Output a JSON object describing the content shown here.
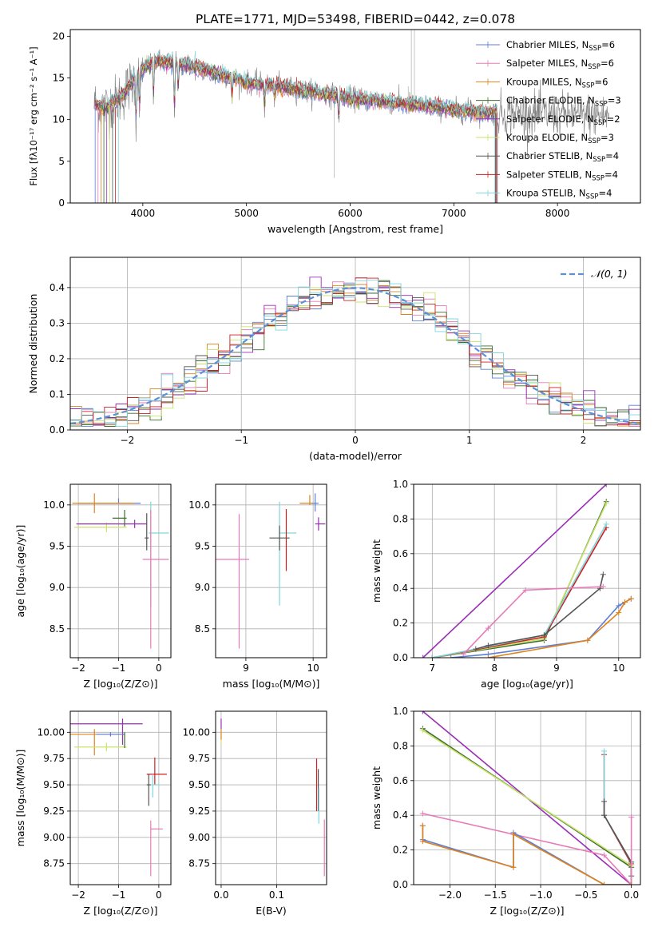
{
  "figure_title": "PLATE=1771, MJD=53498, FIBERID=0442, z=0.078",
  "colors": {
    "chabrier_miles": "#5b7fd6",
    "salpeter_miles": "#e87ab8",
    "kroupa_miles": "#e0821c",
    "chabrier_elodie": "#3d6e2e",
    "salpeter_elodie": "#9a2fb6",
    "kroupa_elodie": "#c9e36a",
    "chabrier_stelib": "#555555",
    "salpeter_stelib": "#cc2222",
    "kroupa_stelib": "#7fd6dc",
    "data": "#808080",
    "normal": "#5b8fd6"
  },
  "chart_data": [
    {
      "id": "spectrum",
      "type": "line",
      "title": "PLATE=1771, MJD=53498, FIBERID=0442, z=0.078",
      "xlabel": "wavelength [Angstrom, rest frame]",
      "ylabel": "Flux [fλ10⁻¹⁷ erg cm⁻² s⁻¹ A⁻¹]",
      "xlim": [
        3300,
        8800
      ],
      "ylim": [
        0,
        20.8
      ],
      "xticks": [
        4000,
        5000,
        6000,
        7000,
        8000
      ],
      "yticks": [
        0,
        5,
        10,
        15,
        20
      ],
      "grid": false,
      "legend_position": "top-right",
      "legend": [
        {
          "base": "Chabrier MILES, N",
          "sub": "SSP",
          "tail": "=6",
          "color": "#5b7fd6"
        },
        {
          "base": "Salpeter MILES, N",
          "sub": "SSP",
          "tail": "=6",
          "color": "#e87ab8"
        },
        {
          "base": "Kroupa MILES, N",
          "sub": "SSP",
          "tail": "=6",
          "color": "#e0821c"
        },
        {
          "base": "Chabrier ELODIE, N",
          "sub": "SSP",
          "tail": "=3",
          "color": "#3d6e2e"
        },
        {
          "base": "Salpeter ELODIE, N",
          "sub": "SSP",
          "tail": "=2",
          "color": "#9a2fb6"
        },
        {
          "base": "Kroupa ELODIE, N",
          "sub": "SSP",
          "tail": "=3",
          "color": "#c9e36a"
        },
        {
          "base": "Chabrier STELIB, N",
          "sub": "SSP",
          "tail": "=4",
          "color": "#555555"
        },
        {
          "base": "Salpeter STELIB, N",
          "sub": "SSP",
          "tail": "=4",
          "color": "#cc2222"
        },
        {
          "base": "Kroupa STELIB, N",
          "sub": "SSP",
          "tail": "=4",
          "color": "#7fd6dc"
        }
      ],
      "continuum": {
        "x": [
          3530,
          3650,
          3800,
          3950,
          4100,
          4300,
          4500,
          4800,
          5000,
          5300,
          5600,
          6000,
          6300,
          6600,
          7000,
          7300,
          7420
        ],
        "y": [
          11.8,
          11.5,
          12.8,
          15.5,
          17.0,
          16.8,
          16.3,
          15.3,
          14.5,
          14.0,
          13.4,
          12.6,
          12.2,
          11.8,
          11.2,
          10.8,
          10.8
        ]
      },
      "absorption_lines": [
        {
          "x": 3934,
          "depth": 6.0
        },
        {
          "x": 3969,
          "depth": 5.0
        },
        {
          "x": 4102,
          "depth": 4.5
        },
        {
          "x": 4305,
          "depth": 6.5
        },
        {
          "x": 4341,
          "depth": 3.5
        },
        {
          "x": 4861,
          "depth": 3.0
        },
        {
          "x": 5175,
          "depth": 3.0
        },
        {
          "x": 5270,
          "depth": 2.0
        },
        {
          "x": 5890,
          "depth": 3.0
        }
      ]
    },
    {
      "id": "residuals",
      "type": "line",
      "xlabel": "(data-model)/error",
      "ylabel": "Normed distribution",
      "xlim": [
        -2.5,
        2.5
      ],
      "ylim": [
        0,
        0.485
      ],
      "xticks": [
        -2,
        -1,
        0,
        1,
        2
      ],
      "yticks": [
        0.0,
        0.1,
        0.2,
        0.3,
        0.4
      ],
      "grid": true,
      "legend_position": "top-right",
      "legend_label": "𝒩(0, 1)",
      "bins": [
        -2.5,
        2.5,
        50
      ]
    },
    {
      "id": "age_vs_Z",
      "type": "scatter",
      "xlabel": "Z [log₁₀(Z/Z⊙)]",
      "ylabel": "age  [log₁₀(age/yr)]",
      "xlim": [
        -2.2,
        0.3
      ],
      "ylim": [
        8.15,
        10.25
      ],
      "xticks": [
        -2,
        -1,
        0
      ],
      "yticks": [
        8.5,
        9.0,
        9.5,
        10.0
      ],
      "grid": true,
      "points": [
        {
          "x": -1.0,
          "xerr": [
            1.0,
            0.55
          ],
          "y": 10.02,
          "yerr": [
            0.0,
            0.06
          ],
          "color": "#5b7fd6"
        },
        {
          "x": -1.6,
          "xerr": [
            0.55,
            1.0
          ],
          "y": 10.02,
          "yerr": [
            0.12,
            0.12
          ],
          "color": "#e0821c"
        },
        {
          "x": -1.3,
          "xerr": [
            0.8,
            0.5
          ],
          "y": 9.73,
          "yerr": [
            0.06,
            0.06
          ],
          "color": "#c9e36a"
        },
        {
          "x": -0.6,
          "xerr": [
            1.45,
            0.3
          ],
          "y": 9.77,
          "yerr": [
            0.05,
            0.05
          ],
          "color": "#9a2fb6"
        },
        {
          "x": -0.85,
          "xerr": [
            0.3,
            0.05
          ],
          "y": 9.84,
          "yerr": [
            0.1,
            0.1
          ],
          "color": "#3d6e2e"
        },
        {
          "x": -0.3,
          "xerr": [
            0.05,
            0.05
          ],
          "y": 9.6,
          "yerr": [
            0.15,
            0.3
          ],
          "color": "#555555"
        },
        {
          "x": -0.2,
          "xerr": [
            0.05,
            0.45
          ],
          "y": 9.66,
          "yerr": [
            0.9,
            0.38
          ],
          "color": "#7fd6dc"
        },
        {
          "x": -0.2,
          "xerr": [
            0.2,
            0.45
          ],
          "y": 9.34,
          "yerr": [
            1.08,
            0.6
          ],
          "color": "#e87ab8"
        }
      ]
    },
    {
      "id": "age_vs_mass",
      "type": "scatter",
      "xlabel": "mass [log₁₀(M/M⊙)]",
      "ylabel": "",
      "xlim": [
        8.55,
        10.2
      ],
      "ylim": [
        8.15,
        10.25
      ],
      "xticks": [
        9,
        10
      ],
      "yticks": [
        8.5,
        9.0,
        9.5,
        10.0
      ],
      "grid": true,
      "points": [
        {
          "x": 9.95,
          "xerr": [
            0.15,
            0.05
          ],
          "y": 10.02,
          "yerr": [
            0.02,
            0.1
          ],
          "color": "#e0821c"
        },
        {
          "x": 10.03,
          "xerr": [
            0.05,
            0.05
          ],
          "y": 10.02,
          "yerr": [
            0.1,
            0.12
          ],
          "color": "#5b7fd6"
        },
        {
          "x": 10.08,
          "xerr": [
            0.05,
            0.1
          ],
          "y": 9.77,
          "yerr": [
            0.08,
            0.08
          ],
          "color": "#9a2fb6"
        },
        {
          "x": 9.5,
          "xerr": [
            0.0,
            0.25
          ],
          "y": 9.66,
          "yerr": [
            0.88,
            0.38
          ],
          "color": "#7fd6dc"
        },
        {
          "x": 9.6,
          "xerr": [
            0.0,
            0.0
          ],
          "y": 9.6,
          "yerr": [
            0.4,
            0.35
          ],
          "color": "#cc2222"
        },
        {
          "x": 9.5,
          "xerr": [
            0.15,
            0.15
          ],
          "y": 9.6,
          "yerr": [
            0.15,
            0.15
          ],
          "color": "#555555"
        },
        {
          "x": 8.9,
          "xerr": [
            0.35,
            0.15
          ],
          "y": 9.34,
          "yerr": [
            1.08,
            0.55
          ],
          "color": "#e87ab8"
        }
      ]
    },
    {
      "id": "massweight_vs_age",
      "type": "line",
      "xlabel": "age  [log₁₀(age/yr)]",
      "ylabel": "mass weight",
      "xlim": [
        6.7,
        10.35
      ],
      "ylim": [
        0,
        1.0
      ],
      "xticks": [
        7,
        8,
        9,
        10
      ],
      "yticks": [
        0.0,
        0.2,
        0.4,
        0.6,
        0.8,
        1.0
      ],
      "grid": true,
      "series": [
        {
          "color": "#9a2fb6",
          "x": [
            6.85,
            9.8
          ],
          "y": [
            0.0,
            1.0
          ]
        },
        {
          "color": "#3d6e2e",
          "x": [
            7.0,
            8.8,
            9.8
          ],
          "y": [
            0.0,
            0.1,
            0.9
          ]
        },
        {
          "color": "#c9e36a",
          "x": [
            7.0,
            8.8,
            9.8
          ],
          "y": [
            0.0,
            0.11,
            0.89
          ]
        },
        {
          "color": "#cc2222",
          "x": [
            7.0,
            8.8,
            9.8
          ],
          "y": [
            0.0,
            0.12,
            0.75
          ]
        },
        {
          "color": "#7fd6dc",
          "x": [
            7.0,
            8.8,
            9.8
          ],
          "y": [
            0.0,
            0.13,
            0.77
          ]
        },
        {
          "color": "#555555",
          "x": [
            7.7,
            7.9,
            8.8,
            9.7,
            9.75
          ],
          "y": [
            0.05,
            0.07,
            0.13,
            0.4,
            0.48
          ]
        },
        {
          "color": "#e87ab8",
          "x": [
            7.5,
            7.9,
            8.5,
            9.75
          ],
          "y": [
            0.02,
            0.17,
            0.39,
            0.41
          ]
        },
        {
          "color": "#5b7fd6",
          "x": [
            7.3,
            7.9,
            9.5,
            10.0,
            10.1,
            10.2
          ],
          "y": [
            0.0,
            0.02,
            0.1,
            0.3,
            0.32,
            0.34
          ]
        },
        {
          "color": "#e0821c",
          "x": [
            7.9,
            9.5,
            10.0,
            10.1,
            10.2
          ],
          "y": [
            0.0,
            0.1,
            0.26,
            0.32,
            0.34
          ]
        }
      ]
    },
    {
      "id": "mass_vs_Z",
      "type": "scatter",
      "xlabel": "Z [log₁₀(Z/Z⊙)]",
      "ylabel": "mass [log₁₀(M/M⊙)]",
      "xlim": [
        -2.2,
        0.3
      ],
      "ylim": [
        8.55,
        10.2
      ],
      "xticks": [
        -2,
        -1,
        0
      ],
      "yticks": [
        8.75,
        9.0,
        9.25,
        9.5,
        9.75,
        10.0
      ],
      "grid": true,
      "points": [
        {
          "x": -0.9,
          "xerr": [
            1.3,
            0.5
          ],
          "y": 10.08,
          "yerr": [
            0.2,
            0.05
          ],
          "color": "#9a2fb6"
        },
        {
          "x": -1.6,
          "xerr": [
            0.7,
            0.75
          ],
          "y": 9.98,
          "yerr": [
            0.2,
            0.05
          ],
          "color": "#e0821c"
        },
        {
          "x": -1.2,
          "xerr": [
            0.35,
            0.35
          ],
          "y": 9.98,
          "yerr": [
            0.02,
            0.02
          ],
          "color": "#5b7fd6"
        },
        {
          "x": -1.3,
          "xerr": [
            0.8,
            0.5
          ],
          "y": 9.86,
          "yerr": [
            0.04,
            0.04
          ],
          "color": "#c9e36a"
        },
        {
          "x": -0.85,
          "xerr": [
            0.0,
            0.0
          ],
          "y": 9.95,
          "yerr": [
            0.1,
            0.05
          ],
          "color": "#3d6e2e"
        },
        {
          "x": -0.1,
          "xerr": [
            0.2,
            0.3
          ],
          "y": 9.6,
          "yerr": [
            0.1,
            0.16
          ],
          "color": "#cc2222"
        },
        {
          "x": -0.15,
          "xerr": [
            0.15,
            0.2
          ],
          "y": 9.5,
          "yerr": [
            0.12,
            0.1
          ],
          "color": "#7fd6dc"
        },
        {
          "x": -0.25,
          "xerr": [
            0.05,
            0.05
          ],
          "y": 9.5,
          "yerr": [
            0.2,
            0.1
          ],
          "color": "#555555"
        },
        {
          "x": -0.2,
          "xerr": [
            0.0,
            0.3
          ],
          "y": 9.08,
          "yerr": [
            0.45,
            0.08
          ],
          "color": "#e87ab8"
        }
      ]
    },
    {
      "id": "mass_vs_ebv",
      "type": "scatter",
      "xlabel": "E(B-V)",
      "ylabel": "",
      "xlim": [
        -0.01,
        0.19
      ],
      "ylim": [
        8.55,
        10.2
      ],
      "xticks": [
        0.0,
        0.1
      ],
      "yticks": [
        8.75,
        9.0,
        9.25,
        9.5,
        9.75,
        10.0
      ],
      "grid": true,
      "points": [
        {
          "x": 0.0,
          "xerr": [
            0.0,
            0.0
          ],
          "y": 10.08,
          "yerr": [
            0.05,
            0.05
          ],
          "color": "#9a2fb6"
        },
        {
          "x": 0.0,
          "xerr": [
            0.0,
            0.0
          ],
          "y": 9.95,
          "yerr": [
            0.06,
            0.06
          ],
          "color": "#c9e36a"
        },
        {
          "x": 0.0,
          "xerr": [
            0.0,
            0.0
          ],
          "y": 9.98,
          "yerr": [
            0.05,
            0.05
          ],
          "color": "#e0821c"
        },
        {
          "x": 0.172,
          "xerr": [
            0.0,
            0.0
          ],
          "y": 9.5,
          "yerr": [
            0.25,
            0.25
          ],
          "color": "#cc2222"
        },
        {
          "x": 0.175,
          "xerr": [
            0.0,
            0.0
          ],
          "y": 9.45,
          "yerr": [
            0.2,
            0.2
          ],
          "color": "#555555"
        },
        {
          "x": 0.176,
          "xerr": [
            0.0,
            0.0
          ],
          "y": 9.3,
          "yerr": [
            0.17,
            0.17
          ],
          "color": "#7fd6dc"
        },
        {
          "x": 0.186,
          "xerr": [
            0.0,
            0.0
          ],
          "y": 8.9,
          "yerr": [
            0.27,
            0.27
          ],
          "color": "#e87ab8"
        }
      ]
    },
    {
      "id": "massweight_vs_Z",
      "type": "line",
      "xlabel": "Z [log₁₀(Z/Z⊙)]",
      "ylabel": "mass weight",
      "xlim": [
        -2.4,
        0.1
      ],
      "ylim": [
        0,
        1.0
      ],
      "xticks": [
        -2.0,
        -1.5,
        -1.0,
        -0.5,
        0.0
      ],
      "yticks": [
        0.0,
        0.2,
        0.4,
        0.6,
        0.8,
        1.0
      ],
      "grid": true,
      "series": [
        {
          "color": "#9a2fb6",
          "x": [
            -2.3,
            0.0
          ],
          "y": [
            1.0,
            0.0
          ]
        },
        {
          "color": "#3d6e2e",
          "x": [
            -2.3,
            0.0,
            0.0
          ],
          "y": [
            0.9,
            0.1,
            0.0
          ]
        },
        {
          "color": "#c9e36a",
          "x": [
            -2.3,
            0.0,
            0.0
          ],
          "y": [
            0.89,
            0.11,
            0.0
          ]
        },
        {
          "color": "#cc2222",
          "x": [
            -0.3,
            -0.3,
            0.0,
            0.0
          ],
          "y": [
            0.75,
            0.4,
            0.12,
            0.0
          ]
        },
        {
          "color": "#7fd6dc",
          "x": [
            -0.3,
            -0.3,
            0.0,
            0.0
          ],
          "y": [
            0.77,
            0.4,
            0.13,
            0.0
          ]
        },
        {
          "color": "#555555",
          "x": [
            -0.3,
            -0.3,
            0.0,
            0.0
          ],
          "y": [
            0.48,
            0.4,
            0.13,
            0.05
          ]
        },
        {
          "color": "#e87ab8",
          "x": [
            -2.3,
            -0.3,
            0.0,
            0.0
          ],
          "y": [
            0.41,
            0.17,
            0.0,
            0.39
          ]
        },
        {
          "color": "#5b7fd6",
          "x": [
            -2.3,
            -2.3,
            -1.3,
            -1.3,
            -0.3,
            0.0
          ],
          "y": [
            0.34,
            0.26,
            0.1,
            0.3,
            0.0,
            0.0
          ]
        },
        {
          "color": "#e0821c",
          "x": [
            -2.3,
            -2.3,
            -1.3,
            -1.3,
            -0.3,
            0.0
          ],
          "y": [
            0.34,
            0.25,
            0.1,
            0.29,
            0.0,
            0.0
          ]
        }
      ]
    }
  ]
}
